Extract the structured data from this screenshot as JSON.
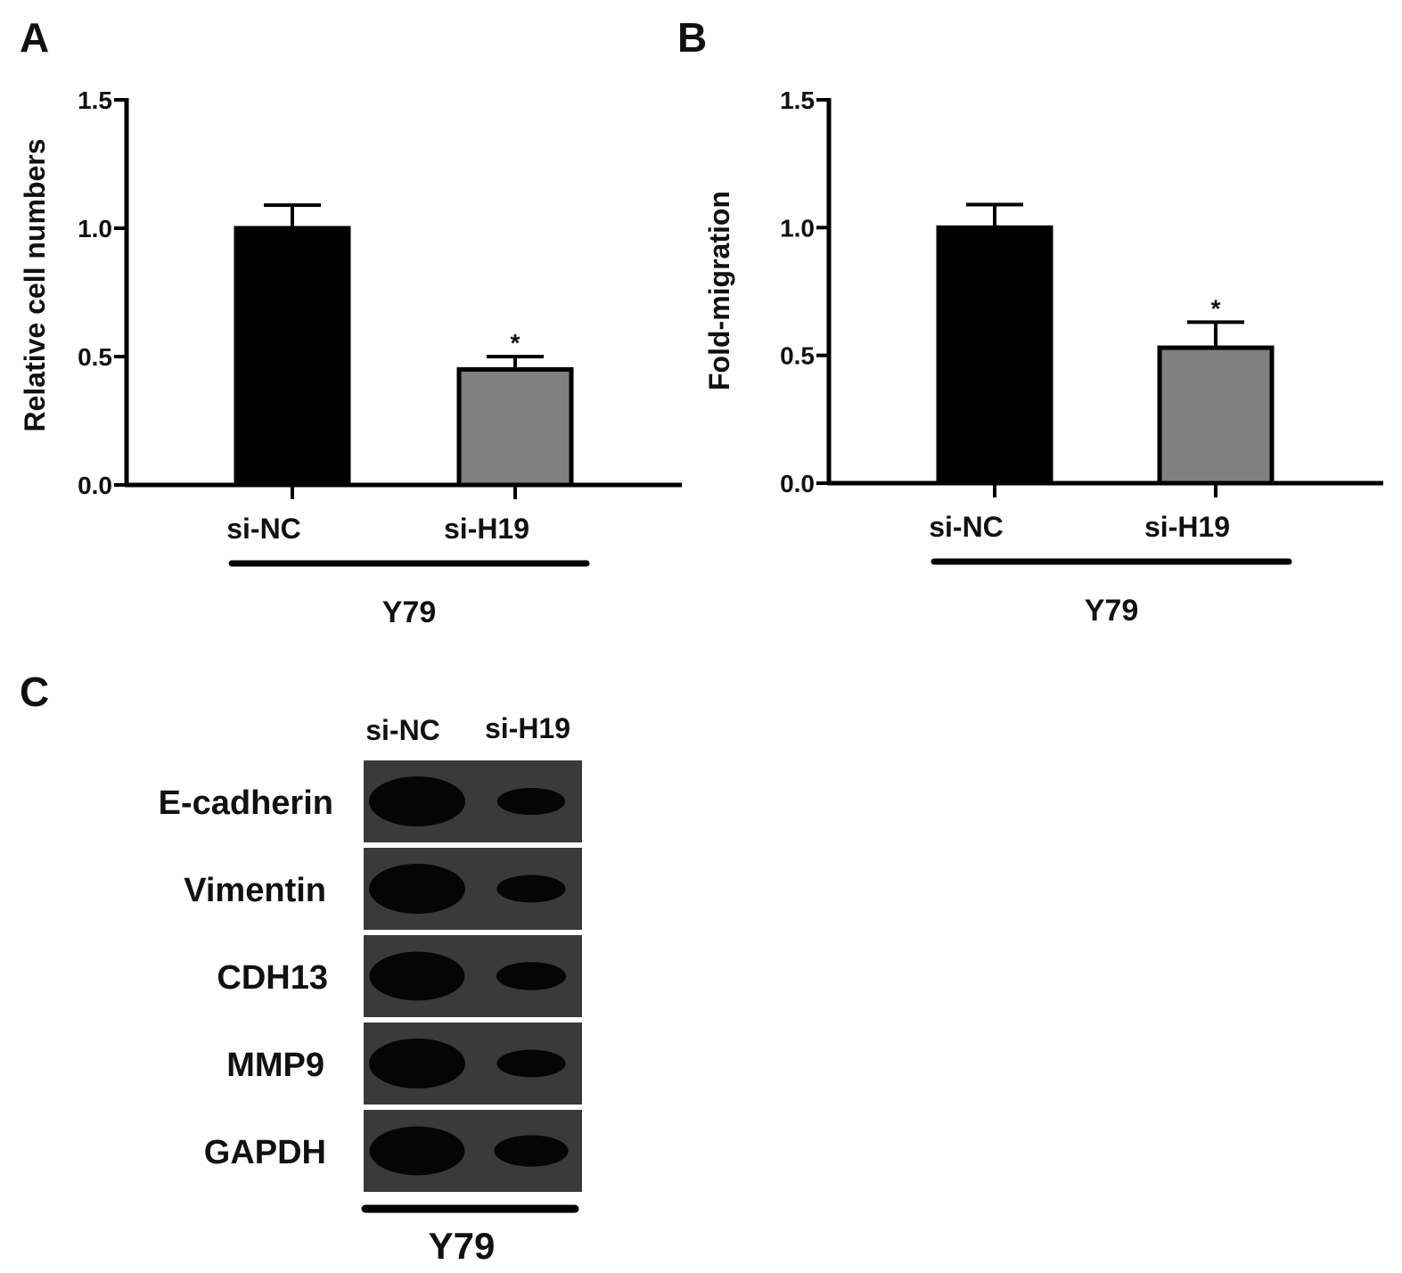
{
  "panels": {
    "a": {
      "letter": "A"
    },
    "b": {
      "letter": "B"
    },
    "c": {
      "letter": "C",
      "lanes": [
        "si-NC",
        "si-H19"
      ],
      "bands": [
        {
          "label": "E-cadherin",
          "intensity": [
            1.0,
            0.55
          ]
        },
        {
          "label": "Vimentin",
          "intensity": [
            1.0,
            0.6
          ]
        },
        {
          "label": "CDH13",
          "intensity": [
            0.95,
            0.65
          ]
        },
        {
          "label": "MMP9",
          "intensity": [
            1.0,
            0.6
          ]
        },
        {
          "label": "GAPDH",
          "intensity": [
            0.95,
            0.95
          ]
        }
      ],
      "group_label": "Y79"
    }
  },
  "colors": {
    "control": "#000000",
    "treatment": "#808080",
    "blot_bg": "#3a3a3a",
    "band": "#050505"
  },
  "chart_data": [
    {
      "type": "bar",
      "categories": [
        "si-NC",
        "si-H19"
      ],
      "values": [
        1.0,
        0.45
      ],
      "errors": [
        0.09,
        0.05
      ],
      "significance": [
        "",
        "*"
      ],
      "ylabel": "Relative cell numbers",
      "xlabel": "Y79",
      "ylim": [
        0,
        1.5
      ],
      "yticks": [
        "0.0",
        "0.5",
        "1.0",
        "1.5"
      ]
    },
    {
      "type": "bar",
      "categories": [
        "si-NC",
        "si-H19"
      ],
      "values": [
        1.0,
        0.53
      ],
      "errors": [
        0.09,
        0.1
      ],
      "significance": [
        "",
        "*"
      ],
      "ylabel": "Fold-migration",
      "xlabel": "Y79",
      "ylim": [
        0,
        1.5
      ],
      "yticks": [
        "0.0",
        "0.5",
        "1.0",
        "1.5"
      ]
    }
  ]
}
